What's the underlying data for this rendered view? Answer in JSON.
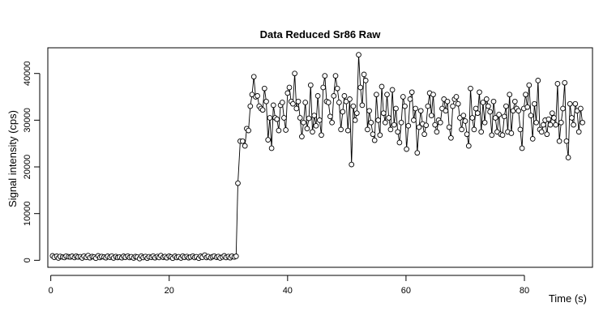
{
  "chart_data": {
    "type": "line",
    "title": "Data Reduced Sr86 Raw",
    "xlabel": "Time (s)",
    "ylabel": "Signal intensity (cps)",
    "xlim": [
      -0.5,
      91.5
    ],
    "ylim": [
      -1500,
      45500
    ],
    "xticks": [
      0,
      20,
      40,
      60,
      80
    ],
    "yticks": [
      0,
      10000,
      20000,
      30000,
      40000
    ],
    "grid": false,
    "marker": "open-circle",
    "line_color": "#000000",
    "series": [
      {
        "name": "",
        "points": [
          [
            0.3,
            950
          ],
          [
            0.6,
            650
          ],
          [
            1.0,
            850
          ],
          [
            1.3,
            500
          ],
          [
            1.6,
            820
          ],
          [
            2.0,
            700
          ],
          [
            2.3,
            600
          ],
          [
            2.6,
            900
          ],
          [
            3.0,
            750
          ],
          [
            3.3,
            700
          ],
          [
            3.6,
            850
          ],
          [
            4.0,
            600
          ],
          [
            4.3,
            900
          ],
          [
            4.6,
            700
          ],
          [
            5.0,
            750
          ],
          [
            5.3,
            500
          ],
          [
            5.6,
            900
          ],
          [
            6.0,
            650
          ],
          [
            6.3,
            1000
          ],
          [
            6.6,
            550
          ],
          [
            7.0,
            800
          ],
          [
            7.3,
            700
          ],
          [
            7.6,
            450
          ],
          [
            8.0,
            950
          ],
          [
            8.3,
            600
          ],
          [
            8.6,
            800
          ],
          [
            9.0,
            700
          ],
          [
            9.3,
            550
          ],
          [
            9.6,
            850
          ],
          [
            10.0,
            650
          ],
          [
            10.3,
            900
          ],
          [
            10.6,
            500
          ],
          [
            11.0,
            800
          ],
          [
            11.3,
            600
          ],
          [
            11.6,
            700
          ],
          [
            12.0,
            550
          ],
          [
            12.3,
            850
          ],
          [
            12.6,
            650
          ],
          [
            13.0,
            900
          ],
          [
            13.3,
            600
          ],
          [
            13.6,
            750
          ],
          [
            14.0,
            500
          ],
          [
            14.3,
            800
          ],
          [
            14.6,
            700
          ],
          [
            15.0,
            350
          ],
          [
            15.3,
            900
          ],
          [
            15.6,
            600
          ],
          [
            16.0,
            800
          ],
          [
            16.3,
            450
          ],
          [
            16.6,
            750
          ],
          [
            17.0,
            650
          ],
          [
            17.3,
            900
          ],
          [
            17.6,
            550
          ],
          [
            18.0,
            800
          ],
          [
            18.3,
            600
          ],
          [
            18.6,
            1000
          ],
          [
            19.0,
            650
          ],
          [
            19.3,
            800
          ],
          [
            19.6,
            550
          ],
          [
            20.0,
            900
          ],
          [
            20.3,
            700
          ],
          [
            20.6,
            450
          ],
          [
            21.0,
            850
          ],
          [
            21.3,
            600
          ],
          [
            21.6,
            750
          ],
          [
            22.0,
            500
          ],
          [
            22.3,
            900
          ],
          [
            22.6,
            650
          ],
          [
            23.0,
            800
          ],
          [
            23.3,
            550
          ],
          [
            23.6,
            700
          ],
          [
            24.0,
            900
          ],
          [
            24.3,
            600
          ],
          [
            24.6,
            750
          ],
          [
            25.0,
            450
          ],
          [
            25.3,
            850
          ],
          [
            25.6,
            650
          ],
          [
            26.0,
            1100
          ],
          [
            26.3,
            600
          ],
          [
            26.6,
            800
          ],
          [
            27.0,
            550
          ],
          [
            27.3,
            750
          ],
          [
            27.6,
            900
          ],
          [
            28.0,
            650
          ],
          [
            28.3,
            800
          ],
          [
            28.6,
            500
          ],
          [
            29.0,
            700
          ],
          [
            29.3,
            950
          ],
          [
            29.6,
            600
          ],
          [
            30.0,
            800
          ],
          [
            30.3,
            550
          ],
          [
            30.6,
            900
          ],
          [
            31.0,
            700
          ],
          [
            31.3,
            850
          ],
          [
            31.6,
            16500
          ],
          [
            32.0,
            25500
          ],
          [
            32.4,
            25500
          ],
          [
            32.8,
            24500
          ],
          [
            33.1,
            28200
          ],
          [
            33.4,
            27800
          ],
          [
            33.7,
            33000
          ],
          [
            34.0,
            35500
          ],
          [
            34.3,
            39300
          ],
          [
            34.6,
            35000
          ],
          [
            34.9,
            35200
          ],
          [
            35.2,
            33000
          ],
          [
            35.5,
            32500
          ],
          [
            35.8,
            32200
          ],
          [
            36.1,
            36800
          ],
          [
            36.4,
            34000
          ],
          [
            36.7,
            25800
          ],
          [
            37.0,
            30500
          ],
          [
            37.3,
            24000
          ],
          [
            37.6,
            33200
          ],
          [
            37.9,
            30500
          ],
          [
            38.2,
            30200
          ],
          [
            38.5,
            27800
          ],
          [
            38.8,
            33200
          ],
          [
            39.1,
            33800
          ],
          [
            39.4,
            30500
          ],
          [
            39.7,
            27900
          ],
          [
            40.0,
            35800
          ],
          [
            40.3,
            37000
          ],
          [
            40.6,
            34000
          ],
          [
            40.9,
            33500
          ],
          [
            41.2,
            40000
          ],
          [
            41.5,
            32500
          ],
          [
            41.8,
            34000
          ],
          [
            42.1,
            30500
          ],
          [
            42.4,
            26500
          ],
          [
            42.7,
            29500
          ],
          [
            43.0,
            33800
          ],
          [
            43.3,
            28200
          ],
          [
            43.6,
            30400
          ],
          [
            43.9,
            37500
          ],
          [
            44.2,
            27500
          ],
          [
            44.5,
            31000
          ],
          [
            44.8,
            28800
          ],
          [
            45.1,
            35200
          ],
          [
            45.4,
            30000
          ],
          [
            45.7,
            26800
          ],
          [
            46.0,
            37000
          ],
          [
            46.3,
            39500
          ],
          [
            46.6,
            34000
          ],
          [
            46.9,
            33800
          ],
          [
            47.2,
            30800
          ],
          [
            47.5,
            29500
          ],
          [
            47.8,
            35200
          ],
          [
            48.1,
            39500
          ],
          [
            48.4,
            36800
          ],
          [
            48.7,
            33800
          ],
          [
            49.0,
            28000
          ],
          [
            49.3,
            31800
          ],
          [
            49.6,
            35200
          ],
          [
            49.9,
            34000
          ],
          [
            50.2,
            27800
          ],
          [
            50.5,
            34500
          ],
          [
            50.8,
            20500
          ],
          [
            51.1,
            33000
          ],
          [
            51.4,
            30000
          ],
          [
            51.7,
            31500
          ],
          [
            52.0,
            44000
          ],
          [
            52.3,
            37000
          ],
          [
            52.6,
            33200
          ],
          [
            52.9,
            39800
          ],
          [
            53.2,
            38500
          ],
          [
            53.5,
            28000
          ],
          [
            53.8,
            32000
          ],
          [
            54.1,
            29500
          ],
          [
            54.4,
            27000
          ],
          [
            54.7,
            25700
          ],
          [
            55.0,
            35500
          ],
          [
            55.3,
            30000
          ],
          [
            55.6,
            26800
          ],
          [
            55.9,
            37200
          ],
          [
            56.2,
            31500
          ],
          [
            56.5,
            29500
          ],
          [
            56.8,
            35500
          ],
          [
            57.1,
            30500
          ],
          [
            57.4,
            28000
          ],
          [
            57.7,
            36500
          ],
          [
            58.0,
            29000
          ],
          [
            58.3,
            32500
          ],
          [
            58.6,
            27500
          ],
          [
            58.9,
            25200
          ],
          [
            59.2,
            29500
          ],
          [
            59.5,
            35000
          ],
          [
            59.8,
            33000
          ],
          [
            60.1,
            23800
          ],
          [
            60.4,
            28800
          ],
          [
            60.7,
            34500
          ],
          [
            61.0,
            36000
          ],
          [
            61.3,
            30000
          ],
          [
            61.6,
            32500
          ],
          [
            61.9,
            23000
          ],
          [
            62.2,
            28500
          ],
          [
            62.5,
            32000
          ],
          [
            62.8,
            29200
          ],
          [
            63.1,
            27000
          ],
          [
            63.4,
            28900
          ],
          [
            63.7,
            33000
          ],
          [
            64.0,
            35800
          ],
          [
            64.3,
            31000
          ],
          [
            64.6,
            35500
          ],
          [
            64.9,
            29000
          ],
          [
            65.2,
            27500
          ],
          [
            65.5,
            30000
          ],
          [
            65.8,
            29500
          ],
          [
            66.1,
            32500
          ],
          [
            66.4,
            34500
          ],
          [
            66.7,
            32000
          ],
          [
            67.0,
            34000
          ],
          [
            67.3,
            28500
          ],
          [
            67.6,
            26200
          ],
          [
            67.9,
            33000
          ],
          [
            68.2,
            34500
          ],
          [
            68.5,
            35000
          ],
          [
            68.8,
            33500
          ],
          [
            69.1,
            30500
          ],
          [
            69.4,
            28000
          ],
          [
            69.7,
            31000
          ],
          [
            70.0,
            29800
          ],
          [
            70.3,
            27000
          ],
          [
            70.6,
            24500
          ],
          [
            70.9,
            36800
          ],
          [
            71.2,
            30500
          ],
          [
            71.5,
            28000
          ],
          [
            71.8,
            32500
          ],
          [
            72.1,
            31500
          ],
          [
            72.4,
            36000
          ],
          [
            72.7,
            27500
          ],
          [
            73.0,
            33800
          ],
          [
            73.3,
            29500
          ],
          [
            73.6,
            34500
          ],
          [
            73.9,
            33000
          ],
          [
            74.2,
            31800
          ],
          [
            74.5,
            26800
          ],
          [
            74.8,
            34000
          ],
          [
            75.1,
            30500
          ],
          [
            75.4,
            27500
          ],
          [
            75.7,
            31200
          ],
          [
            76.0,
            27000
          ],
          [
            76.3,
            26800
          ],
          [
            76.6,
            30800
          ],
          [
            76.9,
            33000
          ],
          [
            77.2,
            27500
          ],
          [
            77.5,
            35500
          ],
          [
            77.8,
            27200
          ],
          [
            78.1,
            32000
          ],
          [
            78.4,
            34000
          ],
          [
            78.7,
            32500
          ],
          [
            79.0,
            32000
          ],
          [
            79.3,
            28000
          ],
          [
            79.6,
            24000
          ],
          [
            79.9,
            32500
          ],
          [
            80.2,
            35500
          ],
          [
            80.5,
            32800
          ],
          [
            80.8,
            37500
          ],
          [
            81.1,
            31000
          ],
          [
            81.4,
            26000
          ],
          [
            81.7,
            33500
          ],
          [
            82.0,
            29500
          ],
          [
            82.3,
            38500
          ],
          [
            82.6,
            28000
          ],
          [
            82.9,
            27500
          ],
          [
            83.2,
            29000
          ],
          [
            83.5,
            30000
          ],
          [
            83.8,
            27000
          ],
          [
            84.1,
            30200
          ],
          [
            84.4,
            29000
          ],
          [
            84.7,
            31500
          ],
          [
            85.0,
            30500
          ],
          [
            85.3,
            29000
          ],
          [
            85.6,
            37800
          ],
          [
            85.9,
            25500
          ],
          [
            86.2,
            29500
          ],
          [
            86.5,
            32500
          ],
          [
            86.8,
            38000
          ],
          [
            87.1,
            25500
          ],
          [
            87.4,
            22000
          ],
          [
            87.7,
            33500
          ],
          [
            88.0,
            30500
          ],
          [
            88.3,
            29000
          ],
          [
            88.6,
            33500
          ],
          [
            88.9,
            32000
          ],
          [
            89.2,
            27500
          ],
          [
            89.5,
            32500
          ],
          [
            89.8,
            29500
          ]
        ]
      }
    ]
  }
}
